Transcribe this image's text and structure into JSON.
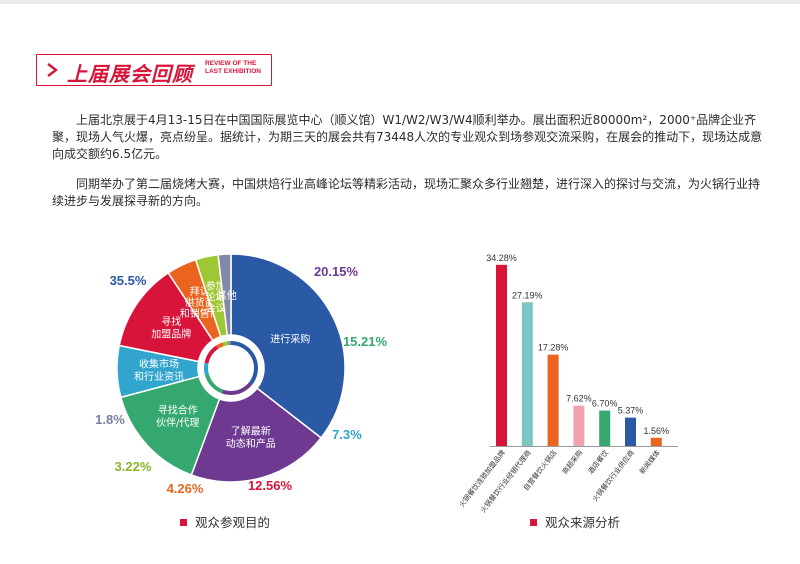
{
  "section": {
    "title": "上届展会回顾",
    "subtitle_en": "REVIEW OF THE LAST EXHIBITION"
  },
  "paragraphs": [
    "上届北京展于4月13-15日在中国国际展览中心（顺义馆）W1/W2/W3/W4顺利举办。展出面积近80000m²，2000⁺品牌企业齐聚，现场人气火爆，亮点纷呈。据统计，为期三天的展会共有73448人次的专业观众到场参观交流采购，在展会的推动下，现场达成意向成交额约6.5亿元。",
    "同期举办了第二届烧烤大赛，中国烘焙行业高峰论坛等精彩活动，现场汇聚众多行业翘楚，进行深入的探讨与交流，为火锅行业持续进步与发展探寻新的方向。"
  ],
  "chart_data": [
    {
      "type": "pie",
      "title": "观众参观目的",
      "slices": [
        {
          "label": [
            "进行采购"
          ],
          "value": 35.5,
          "display": "35.5%",
          "color": "#2a5aa5",
          "pct_color": "#2a5aa5"
        },
        {
          "label": [
            "了解最新",
            "动态和产品"
          ],
          "value": 20.15,
          "display": "20.15%",
          "color": "#6e3a91",
          "pct_color": "#6e3a91"
        },
        {
          "label": [
            "寻找合作",
            "伙伴/代理"
          ],
          "value": 15.21,
          "display": "15.21%",
          "color": "#35a870",
          "pct_color": "#35a870"
        },
        {
          "label": [
            "收集市场",
            "和行业资讯"
          ],
          "value": 7.3,
          "display": "7.3%",
          "color": "#31a5cd",
          "pct_color": "#31a5cd"
        },
        {
          "label": [
            "寻找",
            "加盟品牌"
          ],
          "value": 12.56,
          "display": "12.56%",
          "color": "#d9143a",
          "pct_color": "#d9143a"
        },
        {
          "label": [
            "拜访",
            "供货商",
            "和销售商"
          ],
          "value": 4.26,
          "display": "4.26%",
          "color": "#ea6420",
          "pct_color": "#ea6420"
        },
        {
          "label": [
            "参加",
            "论坛",
            "会议"
          ],
          "value": 3.22,
          "display": "3.22%",
          "color": "#9ec734",
          "pct_color": "#8cb52a"
        },
        {
          "label": [
            "其他"
          ],
          "value": 1.8,
          "display": "1.8%",
          "color": "#8289a8",
          "pct_color": "#7a80a0"
        }
      ]
    },
    {
      "type": "bar",
      "title": "观众来源分析",
      "categories": [
        "火锅餐饮连锁加盟品牌",
        "火锅餐饮行业经销代理商",
        "自营餐饮火锅店",
        "商超采购",
        "酒店餐饮",
        "火锅餐饮行业供应商",
        "新闻媒体"
      ],
      "values": [
        34.28,
        27.19,
        17.28,
        7.62,
        6.7,
        5.37,
        1.56
      ],
      "value_labels": [
        "34.28%",
        "27.19%",
        "17.28%",
        "7.62%",
        "6.70%",
        "5.37%",
        "1.56%"
      ],
      "colors": [
        "#d9143a",
        "#7dc4c4",
        "#ea6420",
        "#f0a3ad",
        "#35a870",
        "#2a5aa5",
        "#ea6420"
      ],
      "ylim": [
        0,
        35
      ]
    }
  ]
}
